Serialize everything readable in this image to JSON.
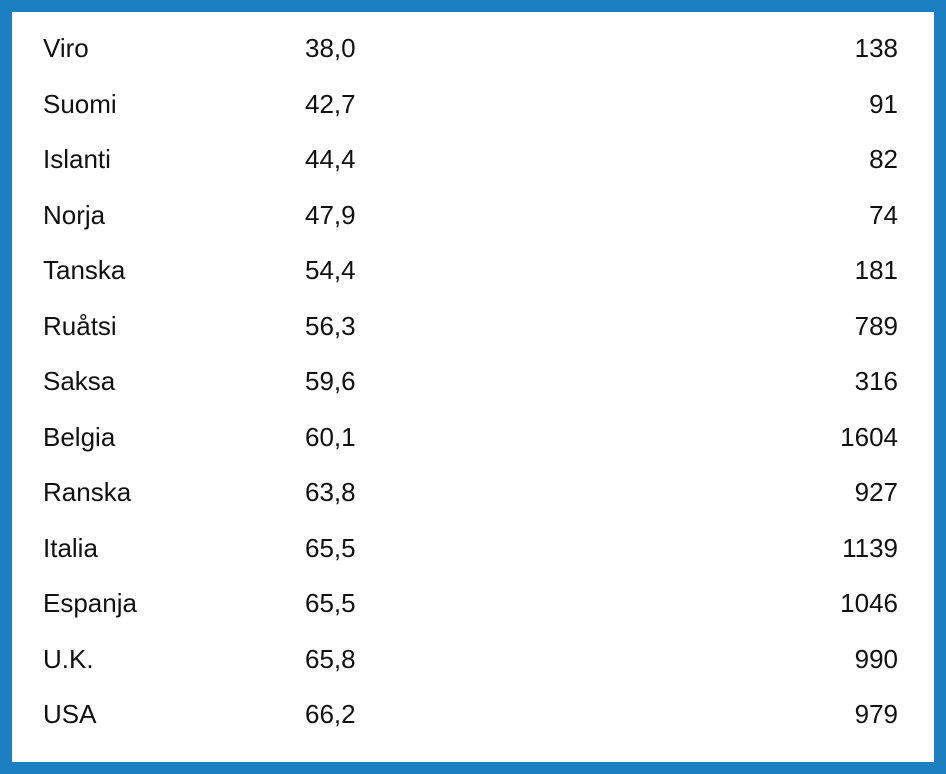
{
  "table": {
    "rows": [
      [
        "Viro",
        "38,0",
        "138"
      ],
      [
        "Suomi",
        "42,7",
        "91"
      ],
      [
        "Islanti",
        "44,4",
        "82"
      ],
      [
        "Norja",
        "47,9",
        "74"
      ],
      [
        "Tanska",
        "54,4",
        "181"
      ],
      [
        "Ruåtsi",
        "56,3",
        "789"
      ],
      [
        "Saksa",
        "59,6",
        "316"
      ],
      [
        "Belgia",
        "60,1",
        "1604"
      ],
      [
        "Ranska",
        "63,8",
        "927"
      ],
      [
        "Italia",
        "65,5",
        "1139"
      ],
      [
        "Espanja",
        "65,5",
        "1046"
      ],
      [
        "U.K.",
        "65,8",
        "990"
      ],
      [
        "USA",
        "66,2",
        "979"
      ]
    ]
  }
}
